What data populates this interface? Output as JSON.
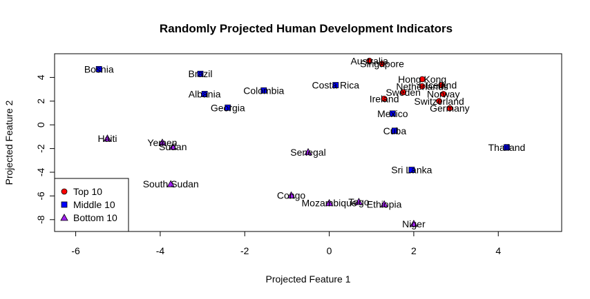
{
  "chart_data": {
    "type": "scatter",
    "title": "Randomly Projected Human Development Indicators",
    "xlabel": "Projected Feature 1",
    "ylabel": "Projected Feature 2",
    "xlim": [
      -6.5,
      5.5
    ],
    "ylim": [
      -9,
      6
    ],
    "xticks": [
      -6,
      -4,
      -2,
      0,
      2,
      4
    ],
    "yticks": [
      -8,
      -6,
      -4,
      -2,
      0,
      2,
      4
    ],
    "grid": false,
    "legend_position": "bottom-left",
    "series": [
      {
        "name": "Top 10",
        "color": "#ff0000",
        "marker": "circle",
        "points": [
          {
            "label": "Australia",
            "x": 0.95,
            "y": 5.4
          },
          {
            "label": "Singapore",
            "x": 1.25,
            "y": 5.15
          },
          {
            "label": "Hong Kong",
            "x": 2.2,
            "y": 3.85
          },
          {
            "label": "Iceland",
            "x": 2.65,
            "y": 3.35
          },
          {
            "label": "Netherlands",
            "x": 2.2,
            "y": 3.25
          },
          {
            "label": "Norway",
            "x": 2.7,
            "y": 2.6
          },
          {
            "label": "Sweden",
            "x": 1.75,
            "y": 2.75
          },
          {
            "label": "Ireland",
            "x": 1.3,
            "y": 2.2
          },
          {
            "label": "Switzerland",
            "x": 2.6,
            "y": 2.0
          },
          {
            "label": "Germany",
            "x": 2.85,
            "y": 1.4
          }
        ]
      },
      {
        "name": "Middle 10",
        "color": "#0000ff",
        "marker": "square",
        "points": [
          {
            "label": "Bosnia",
            "x": -5.45,
            "y": 4.7
          },
          {
            "label": "Brazil",
            "x": -3.05,
            "y": 4.3
          },
          {
            "label": "Albania",
            "x": -2.95,
            "y": 2.6
          },
          {
            "label": "Colombia",
            "x": -1.55,
            "y": 2.9
          },
          {
            "label": "Georgia",
            "x": -2.4,
            "y": 1.45
          },
          {
            "label": "Costa Rica",
            "x": 0.15,
            "y": 3.35
          },
          {
            "label": "Mexico",
            "x": 1.5,
            "y": 0.95
          },
          {
            "label": "Cuba",
            "x": 1.55,
            "y": -0.5
          },
          {
            "label": "Thailand",
            "x": 4.2,
            "y": -1.9
          },
          {
            "label": "Sri Lanka",
            "x": 1.95,
            "y": -3.8
          }
        ]
      },
      {
        "name": "Bottom 10",
        "color": "#a020f0",
        "marker": "triangle",
        "points": [
          {
            "label": "Haiti",
            "x": -5.25,
            "y": -1.15
          },
          {
            "label": "Yemen",
            "x": -3.95,
            "y": -1.5
          },
          {
            "label": "Sudan",
            "x": -3.7,
            "y": -1.85
          },
          {
            "label": "Senegal",
            "x": -0.5,
            "y": -2.3
          },
          {
            "label": "South Sudan",
            "x": -3.75,
            "y": -5.0
          },
          {
            "label": "Congo",
            "x": -0.9,
            "y": -5.95
          },
          {
            "label": "Mozambique",
            "x": 0.0,
            "y": -6.6
          },
          {
            "label": "Togo",
            "x": 0.7,
            "y": -6.5
          },
          {
            "label": "Ethiopia",
            "x": 1.3,
            "y": -6.7
          },
          {
            "label": "Niger",
            "x": 2.0,
            "y": -8.35
          }
        ]
      }
    ]
  }
}
